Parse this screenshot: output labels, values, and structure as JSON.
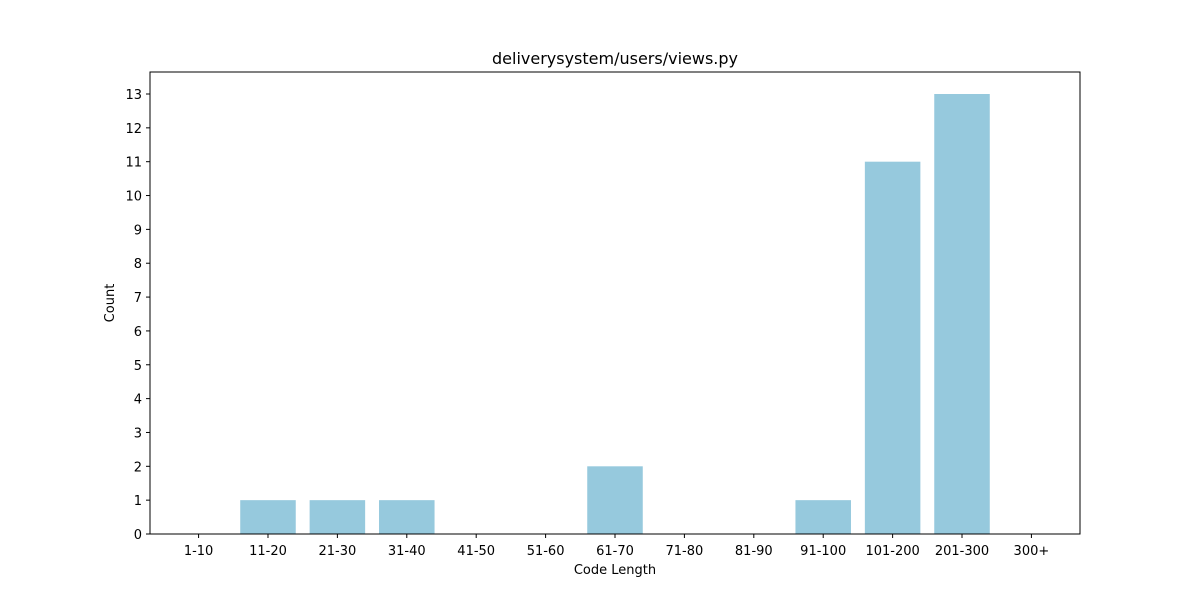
{
  "chart_data": {
    "type": "bar",
    "title": "deliverysystem/users/views.py",
    "xlabel": "Code Length",
    "ylabel": "Count",
    "categories": [
      "1-10",
      "11-20",
      "21-30",
      "31-40",
      "41-50",
      "51-60",
      "61-70",
      "71-80",
      "81-90",
      "91-100",
      "101-200",
      "201-300",
      "300+"
    ],
    "values": [
      0,
      1,
      1,
      1,
      0,
      0,
      2,
      0,
      0,
      1,
      11,
      13,
      0
    ],
    "ylim": [
      0,
      13.65
    ],
    "yticks": [
      0,
      1,
      2,
      3,
      4,
      5,
      6,
      7,
      8,
      9,
      10,
      11,
      12,
      13
    ],
    "grid": false,
    "bar_color": "#96c9dd"
  }
}
